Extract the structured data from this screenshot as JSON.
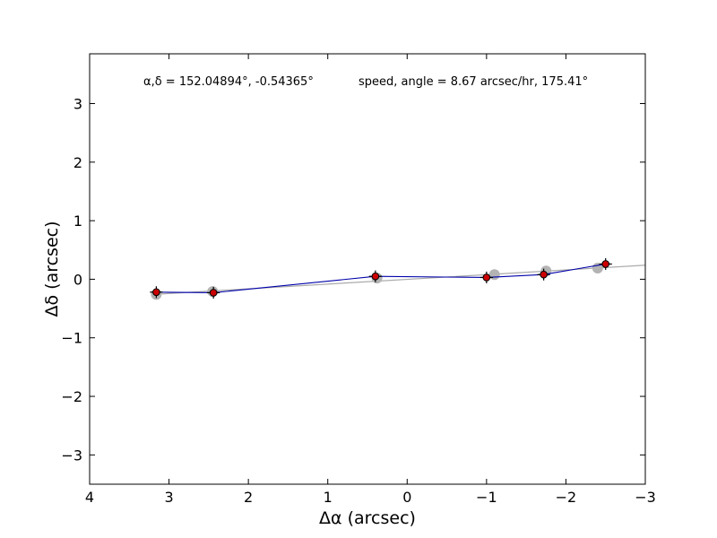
{
  "chart_data": {
    "type": "scatter",
    "title": "",
    "xlabel": "Δα (arcsec)",
    "ylabel": "Δδ (arcsec)",
    "xlim": [
      4,
      -3
    ],
    "ylim": [
      -3.5,
      3.85
    ],
    "x_inverted": true,
    "xticks": [
      4,
      3,
      2,
      1,
      0,
      -1,
      -2,
      -3
    ],
    "yticks": [
      -3,
      -2,
      -1,
      0,
      1,
      2,
      3
    ],
    "xtick_labels": [
      "4",
      "3",
      "2",
      "1",
      "0",
      "−1",
      "−2",
      "−3"
    ],
    "ytick_labels": [
      "−3",
      "−2",
      "−1",
      "0",
      "1",
      "2",
      "3"
    ],
    "grid": false,
    "annotations": {
      "coords": "α,δ = 152.04894°, -0.54365°",
      "speed": "speed, angle = 8.67 arcsec/hr, 175.41°"
    },
    "fit_line": {
      "x": [
        3.2,
        -3.0
      ],
      "y": [
        -0.26,
        0.24
      ],
      "color": "#aaaaaa"
    },
    "predicted_points": {
      "x": [
        3.16,
        2.45,
        0.38,
        -1.1,
        -1.75,
        -2.4
      ],
      "y": [
        -0.26,
        -0.21,
        0.02,
        0.08,
        0.14,
        0.19
      ],
      "color": "#b3b3b3"
    },
    "observed_points": {
      "x": [
        3.16,
        2.44,
        0.4,
        -1.0,
        -1.72,
        -2.5
      ],
      "y": [
        -0.22,
        -0.23,
        0.05,
        0.03,
        0.08,
        0.26
      ],
      "xerr": 0.08,
      "yerr": 0.1,
      "color": "#cc0000",
      "line_color": "#0000aa"
    }
  }
}
